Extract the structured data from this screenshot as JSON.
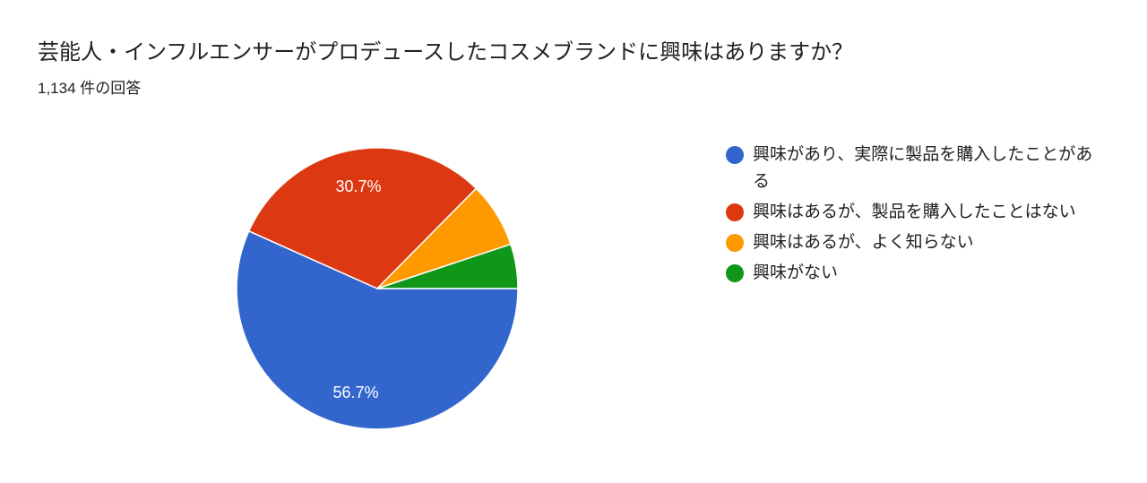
{
  "header": {
    "title": "芸能人・インフルエンサーがプロデュースしたコスメブランドに興味はありますか？",
    "subtitle": "1,134 件の回答"
  },
  "chart_data": {
    "type": "pie",
    "title": "芸能人・インフルエンサーがプロデュースしたコスメブランドに興味はありますか？",
    "subtitle": "1,134 件の回答",
    "categories": [
      "興味があり、実際に製品を購入したことがある",
      "興味はあるが、製品を購入したことはない",
      "興味はあるが、よく知らない",
      "興味がない"
    ],
    "values": [
      56.7,
      30.7,
      7.5,
      5.1
    ],
    "labels_shown": [
      "56.7%",
      "30.7%",
      "",
      ""
    ],
    "colors": [
      "#3366cc",
      "#dc3912",
      "#ff9900",
      "#109618"
    ],
    "start_angle": "3 o'clock, clockwise",
    "legend_position": "right"
  },
  "legend": {
    "items": [
      {
        "label": "興味があり、実際に製品を購入したことがある",
        "color": "#3366cc"
      },
      {
        "label": "興味はあるが、製品を購入したことはない",
        "color": "#dc3912"
      },
      {
        "label": "興味はあるが、よく知らない",
        "color": "#ff9900"
      },
      {
        "label": "興味がない",
        "color": "#109618"
      }
    ]
  },
  "slice_labels": {
    "s0": "56.7%",
    "s1": "30.7%"
  }
}
